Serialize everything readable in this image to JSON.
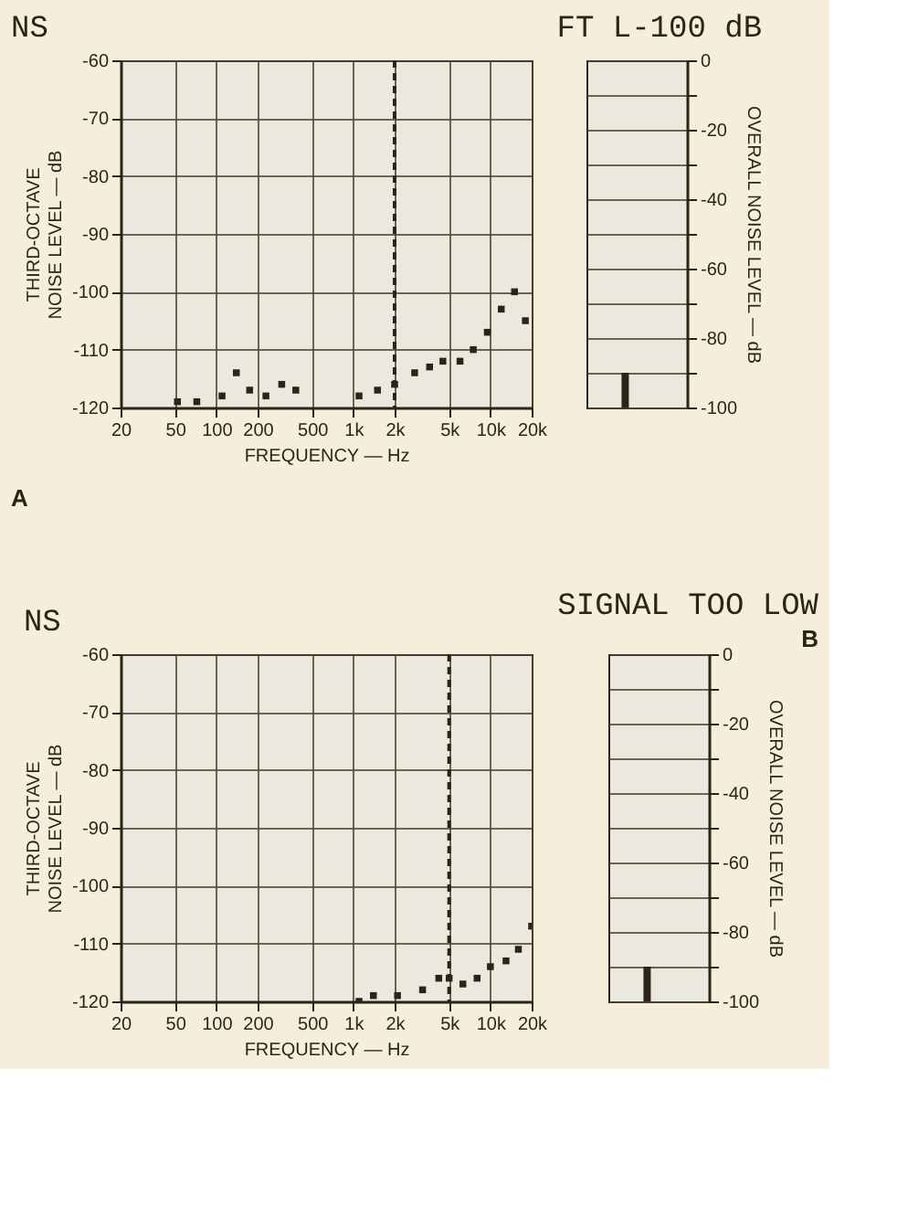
{
  "chart_data": [
    {
      "type": "scatter",
      "title": "NS",
      "xlabel": "FREQUENCY — Hz",
      "ylabel": [
        "THIRD-OCTAVE",
        "NOISE LEVEL — dB"
      ],
      "series": [
        {
          "color": "#2b2418",
          "x": [
            52,
            72,
            110,
            140,
            175,
            230,
            300,
            380,
            1100,
            1500,
            2000,
            2800,
            3600,
            4500,
            6000,
            7500,
            9500,
            12000,
            15000,
            18000
          ],
          "values": [
            -119,
            -119,
            -118,
            -114,
            -117,
            -118,
            -116,
            -117,
            -118,
            -117,
            -116,
            -114,
            -113,
            -112,
            -112,
            -110,
            -107,
            -103,
            -100,
            -105
          ]
        }
      ],
      "xlim": [
        20,
        20000
      ],
      "xticks": [
        20,
        50,
        100,
        200,
        500,
        {
          "value": 1000,
          "label": "1k"
        },
        {
          "value": 2000,
          "label": "2k"
        },
        {
          "value": 5000,
          "label": "5k"
        },
        {
          "value": 10000,
          "label": "10k"
        },
        {
          "value": 20000,
          "label": "20k"
        }
      ],
      "log": "x",
      "ylim": [
        -120,
        -60
      ],
      "yticks": [
        -60,
        -70,
        -80,
        -90,
        -100,
        -110,
        -120
      ],
      "grid": true,
      "ref_lines": [
        {
          "axis": "x",
          "value": 2000,
          "line_style": "dashed"
        }
      ],
      "annotations": [
        "A"
      ]
    },
    {
      "type": "bar",
      "title": "FT L-100 dB",
      "ylabel": "OVERALL NOISE LEVEL — dB",
      "categories": [
        null
      ],
      "values": [
        10
      ],
      "base": [
        -100
      ],
      "color": "#2b2418",
      "ylim": [
        -100,
        0
      ],
      "yticks": [
        0,
        {
          "value": -10,
          "label": null
        },
        -20,
        {
          "value": -30,
          "label": null
        },
        -40,
        {
          "value": -50,
          "label": null
        },
        -60,
        {
          "value": -70,
          "label": null
        },
        -80,
        {
          "value": -90,
          "label": null
        },
        -100
      ],
      "grid": true
    },
    {
      "type": "scatter",
      "title": "NS",
      "xlabel": "FREQUENCY — Hz",
      "ylabel": [
        "THIRD-OCTAVE",
        "NOISE LEVEL — dB"
      ],
      "series": [
        {
          "color": "#2b2418",
          "x": [
            1100,
            1400,
            2100,
            3200,
            4200,
            5000,
            6300,
            8000,
            10000,
            13000,
            16000,
            20000
          ],
          "values": [
            -120,
            -119,
            -119,
            -118,
            -116,
            -116,
            -117,
            -116,
            -114,
            -113,
            -111,
            -107
          ]
        }
      ],
      "xlim": [
        20,
        20000
      ],
      "xticks": [
        20,
        50,
        100,
        200,
        500,
        {
          "value": 1000,
          "label": "1k"
        },
        {
          "value": 2000,
          "label": "2k"
        },
        {
          "value": 5000,
          "label": "5k"
        },
        {
          "value": 10000,
          "label": "10k"
        },
        {
          "value": 20000,
          "label": "20k"
        }
      ],
      "log": "x",
      "ylim": [
        -120,
        -60
      ],
      "yticks": [
        -60,
        -70,
        -80,
        -90,
        -100,
        -110,
        -120
      ],
      "grid": true,
      "ref_lines": [
        {
          "axis": "x",
          "value": 5000,
          "line_style": "dashed"
        }
      ]
    },
    {
      "type": "bar",
      "title": "SIGNAL TOO LOW",
      "ylabel": "OVERALL NOISE LEVEL — dB",
      "categories": [
        null
      ],
      "values": [
        10
      ],
      "base": [
        -100
      ],
      "color": "#2b2418",
      "ylim": [
        -100,
        0
      ],
      "yticks": [
        0,
        {
          "value": -10,
          "label": null
        },
        -20,
        {
          "value": -30,
          "label": null
        },
        -40,
        {
          "value": -50,
          "label": null
        },
        -60,
        {
          "value": -70,
          "label": null
        },
        -80,
        {
          "value": -90,
          "label": null
        },
        -100
      ],
      "grid": true,
      "annotations": [
        "B"
      ]
    }
  ]
}
